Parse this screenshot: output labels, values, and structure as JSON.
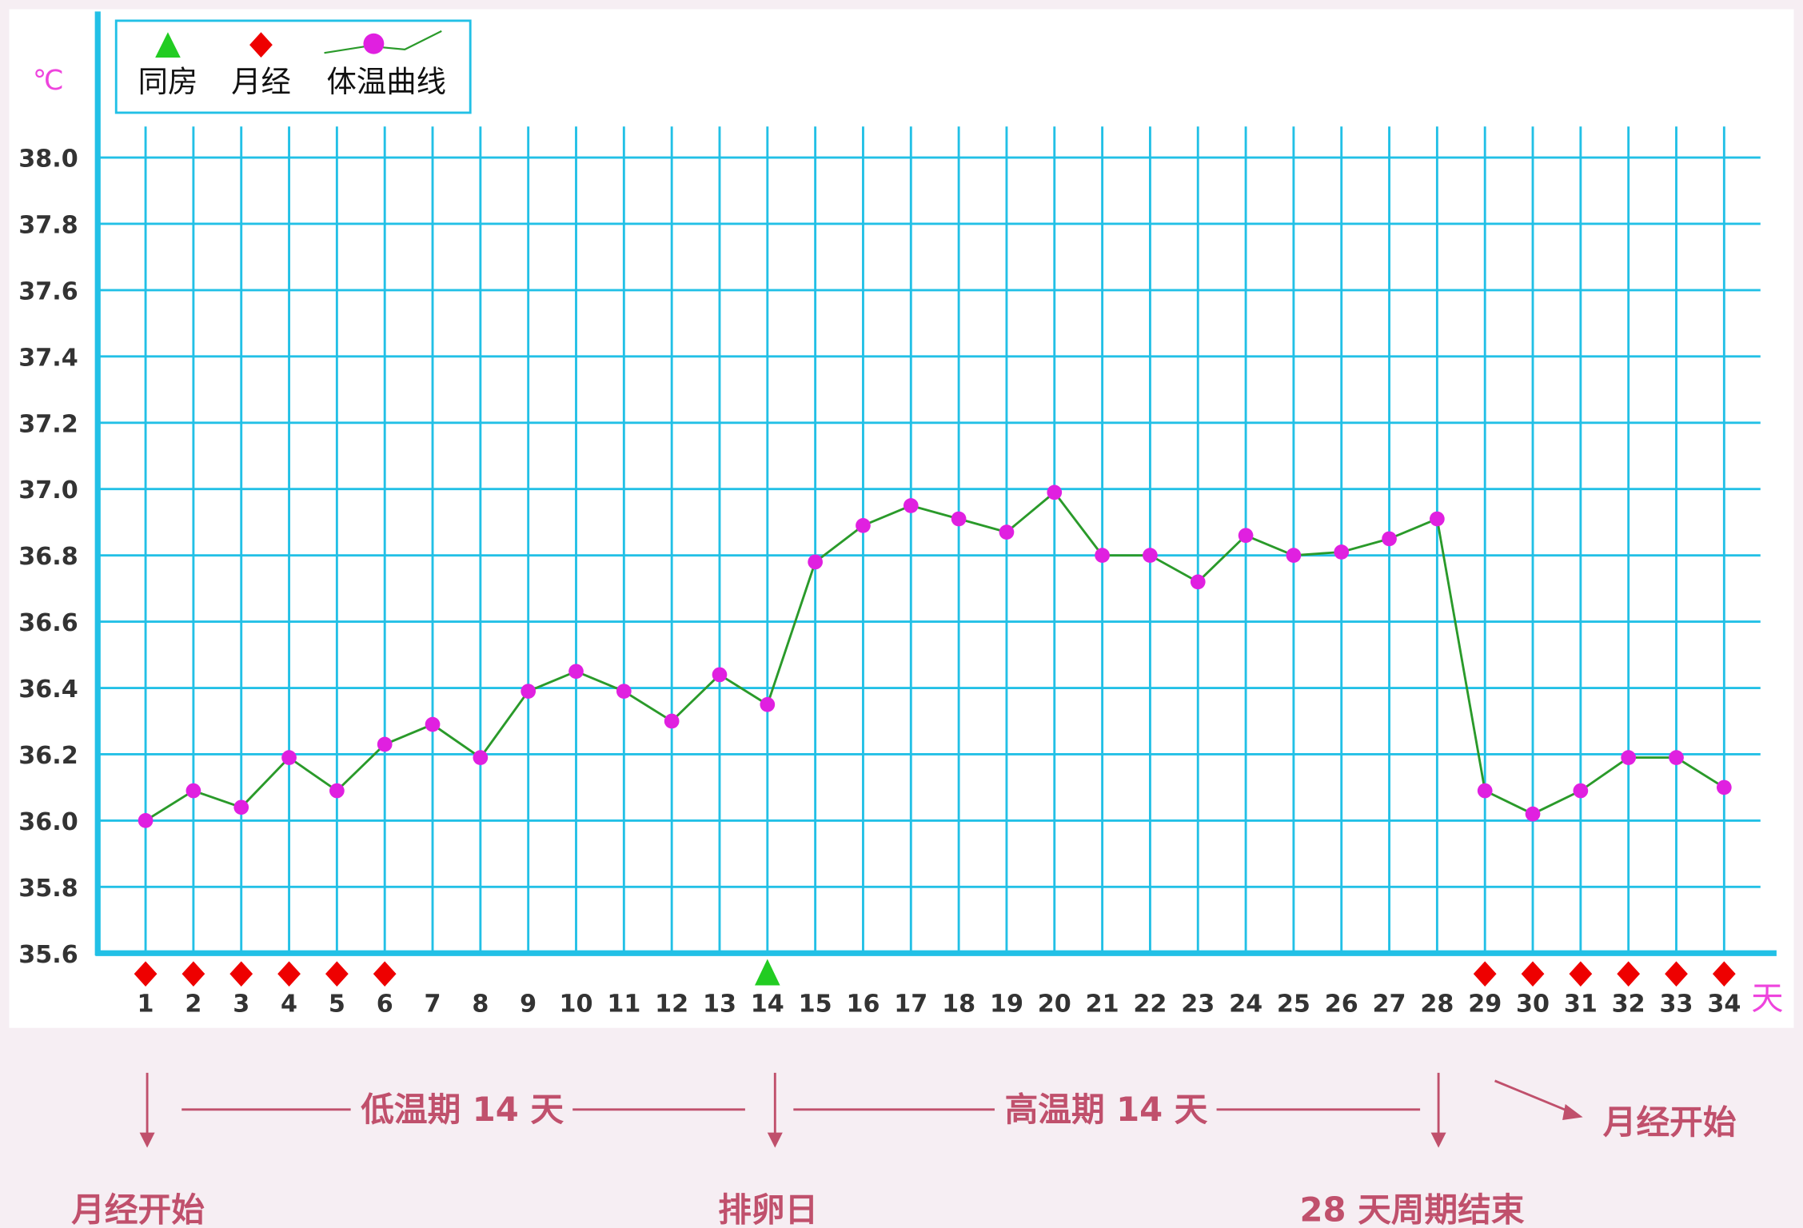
{
  "chart_data": {
    "type": "line",
    "y_unit": "℃",
    "x_unit": "天",
    "legend": [
      "同房",
      "月经",
      "体温曲线"
    ],
    "x": [
      1,
      2,
      3,
      4,
      5,
      6,
      7,
      8,
      9,
      10,
      11,
      12,
      13,
      14,
      15,
      16,
      17,
      18,
      19,
      20,
      21,
      22,
      23,
      24,
      25,
      26,
      27,
      28,
      29,
      30,
      31,
      32,
      33,
      34
    ],
    "values": [
      36.0,
      36.09,
      36.04,
      36.19,
      36.09,
      36.23,
      36.29,
      36.19,
      36.39,
      36.45,
      36.39,
      36.3,
      36.44,
      36.35,
      36.78,
      36.89,
      36.95,
      36.91,
      36.87,
      36.99,
      36.8,
      36.8,
      36.72,
      36.86,
      36.8,
      36.81,
      36.85,
      36.91,
      36.09,
      36.02,
      36.09,
      36.19,
      36.19,
      36.1
    ],
    "line_color": "#2a9a2a",
    "point_color": "#e020e0",
    "menstruation_days": [
      1,
      2,
      3,
      4,
      5,
      6,
      29,
      30,
      31,
      32,
      33,
      34
    ],
    "menstruation_color": "#ee0000",
    "intercourse_days": [
      14
    ],
    "intercourse_color": "#22cc22",
    "highlight_x": [
      7,
      14,
      21,
      28
    ],
    "highlight_y": [
      35.6,
      36.6,
      37.6
    ],
    "highlight_color": "#ee1111",
    "grid_color": "#22c0e6",
    "xlim": [
      0,
      35
    ],
    "ylim": [
      35.6,
      38.0
    ],
    "yticks": [
      35.6,
      35.8,
      {
        "value": 36.0,
        "label": "36.0"
      },
      36.2,
      36.4,
      36.6,
      36.8,
      {
        "value": 37.0,
        "label": "37.0"
      },
      37.2,
      37.4,
      37.6,
      37.8,
      {
        "value": 38.0,
        "label": "38.0"
      }
    ],
    "grid": true,
    "annotations": [
      "低温期 14 天",
      "高温期 14 天",
      "月经开始",
      "排卵日",
      "28 天周期结束",
      "月经开始"
    ]
  }
}
